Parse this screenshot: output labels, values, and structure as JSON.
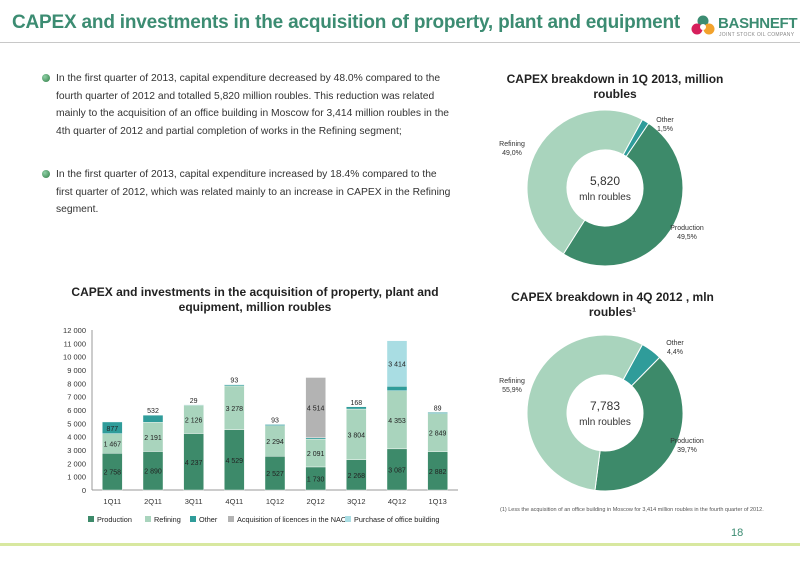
{
  "header": {
    "title": "CAPEX and investments in the acquisition of property, plant and equipment"
  },
  "logo": {
    "name": "BASHNEFT",
    "subtitle": "JOINT STOCK OIL COMPANY"
  },
  "bullets": [
    "In the first quarter of 2013, capital expenditure decreased by 48.0% compared to the fourth quarter of 2012 and totalled 5,820 million roubles. This reduction was related mainly to the acquisition of an office building in Moscow for 3,414 million roubles in the 4th quarter of 2012 and partial completion of works in the Refining segment;",
    "In the first quarter of 2013, capital expenditure increased by 18.4% compared to the first quarter of 2012, which was related mainly to an increase in CAPEX in the Refining segment."
  ],
  "footnote": "(1) Less the acquisition of an office building in Moscow for 3,414 million roubles in the fourth quarter of 2012.",
  "page_number": "18",
  "colors": {
    "production": "#3d8a6a",
    "refining": "#a9d4bd",
    "other": "#2f9c9a",
    "licences": "#b3b3b3",
    "office": "#a9dde3",
    "title": "#3c8c72"
  },
  "chart_data": [
    {
      "type": "bar",
      "stacked": true,
      "title": "CAPEX and investments in the acquisition of property, plant and equipment, million roubles",
      "categories": [
        "1Q11",
        "2Q11",
        "3Q11",
        "4Q11",
        "1Q12",
        "2Q12",
        "3Q12",
        "4Q12",
        "1Q13"
      ],
      "series": [
        {
          "name": "Production",
          "values": [
            2758,
            2890,
            4237,
            4529,
            2527,
            1730,
            2268,
            3087,
            2882
          ],
          "labels": [
            "2 758",
            "2 890",
            "4 237",
            "4 529",
            "2 527",
            "1 730",
            "2 268",
            "3 087",
            "2 882"
          ]
        },
        {
          "name": "Refining",
          "values": [
            1467,
            2191,
            2126,
            3278,
            2294,
            2091,
            3804,
            4353,
            2849
          ],
          "labels": [
            "1 467",
            "2 191",
            "2 126",
            "3 278",
            "2 294",
            "2 091",
            "3 804",
            "4 353",
            "2 849"
          ]
        },
        {
          "name": "Other",
          "values": [
            877,
            532,
            29,
            93,
            93,
            103,
            168,
            343,
            89
          ],
          "labels": [
            "877",
            "532",
            "29",
            "93",
            "93",
            "103",
            "168",
            "343",
            "89"
          ]
        },
        {
          "name": "Acquisition of licences in the NAO",
          "values": [
            0,
            0,
            0,
            0,
            0,
            4514,
            0,
            0,
            0
          ],
          "labels": [
            "",
            "",
            "",
            "",
            "",
            "4 514",
            "",
            "",
            ""
          ]
        },
        {
          "name": "Purchase of office building",
          "values": [
            0,
            0,
            0,
            0,
            0,
            0,
            0,
            3414,
            0
          ],
          "labels": [
            "",
            "",
            "",
            "",
            "",
            "",
            "",
            "3 414",
            ""
          ]
        }
      ],
      "ylim": [
        0,
        12000
      ],
      "yticks": [
        "0",
        "1 000",
        "2 000",
        "3 000",
        "4 000",
        "5 000",
        "6 000",
        "7 000",
        "8 000",
        "9 000",
        "10 000",
        "11 000",
        "12 000"
      ],
      "grid": false,
      "legend": "bottom"
    },
    {
      "type": "pie",
      "donut": true,
      "title": "CAPEX breakdown in 1Q 2013, million roubles",
      "center_value": "5,820",
      "center_unit": "mln roubles",
      "slices": [
        {
          "name": "Production",
          "value": 49.5,
          "label": "49,5%"
        },
        {
          "name": "Refining",
          "value": 49.0,
          "label": "49,0%"
        },
        {
          "name": "Other",
          "value": 1.5,
          "label": "1,5%"
        }
      ]
    },
    {
      "type": "pie",
      "donut": true,
      "title": "CAPEX breakdown in 4Q 2012 , mln roubles¹",
      "center_value": "7,783",
      "center_unit": "mln roubles",
      "slices": [
        {
          "name": "Production",
          "value": 39.7,
          "label": "39,7%"
        },
        {
          "name": "Refining",
          "value": 55.9,
          "label": "55,9%"
        },
        {
          "name": "Other",
          "value": 4.4,
          "label": "4,4%"
        }
      ]
    }
  ]
}
